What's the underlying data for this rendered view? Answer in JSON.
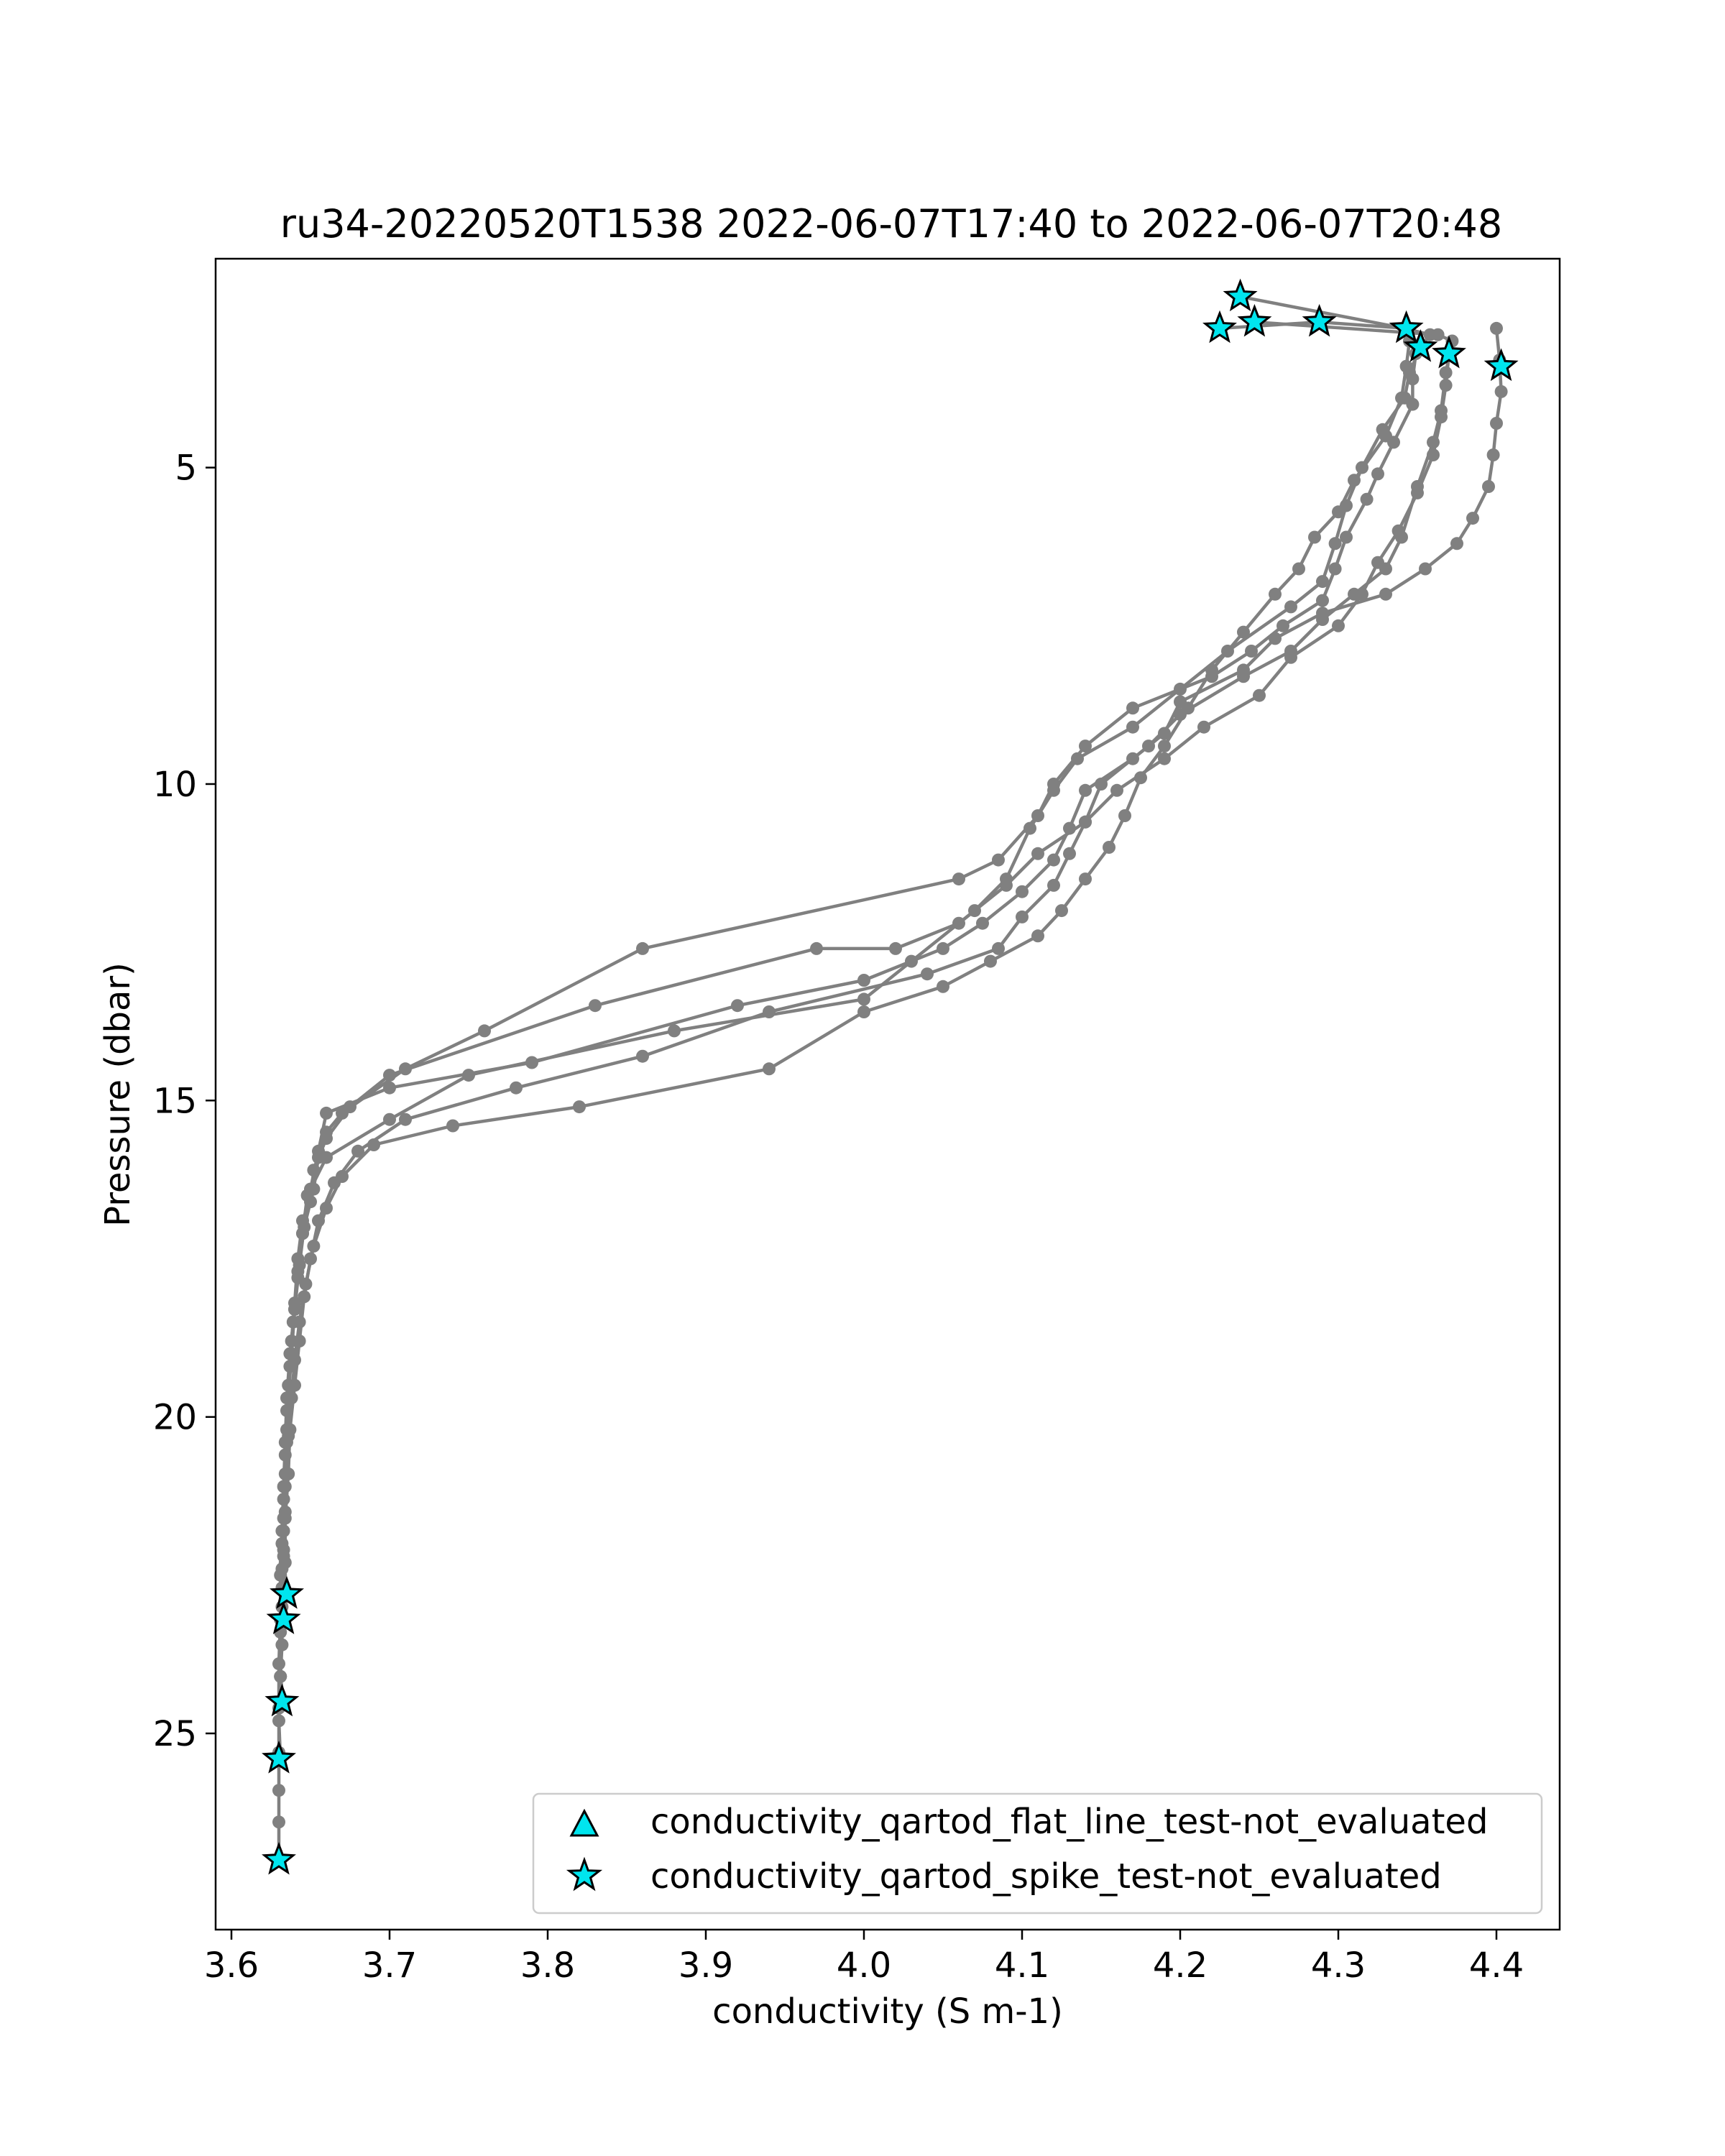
{
  "chart_data": {
    "type": "scatter",
    "title": "ru34-20220520T1538 2022-06-07T17:40 to 2022-06-07T20:48",
    "xlabel": "conductivity (S m-1)",
    "ylabel": "Pressure (dbar)",
    "xlim": [
      3.59,
      4.44
    ],
    "ylim": [
      28.1,
      1.7
    ],
    "y_inverted": true,
    "xticks": [
      "3.6",
      "3.7",
      "3.8",
      "3.9",
      "4.0",
      "4.1",
      "4.2",
      "4.3",
      "4.4"
    ],
    "xtick_values": [
      3.6,
      3.7,
      3.8,
      3.9,
      4.0,
      4.1,
      4.2,
      4.3,
      4.4
    ],
    "yticks": [
      "5",
      "10",
      "15",
      "20",
      "25"
    ],
    "ytick_values": [
      5,
      10,
      15,
      20,
      25
    ],
    "grid": false,
    "legend_position": "bottom-right",
    "colors": {
      "profile_line": "#808080",
      "marker_fill": "#00e5ee",
      "marker_edge": "#000000"
    },
    "legend": [
      {
        "label": "conductivity_qartod_flat_line_test-not_evaluated",
        "marker": "triangle"
      },
      {
        "label": "conductivity_qartod_spike_test-not_evaluated",
        "marker": "star"
      }
    ],
    "profiles": [
      {
        "points": [
          [
            4.238,
            2.3
          ],
          [
            4.342,
            2.8
          ],
          [
            4.358,
            2.9
          ],
          [
            4.349,
            3.2
          ],
          [
            4.347,
            3.6
          ],
          [
            4.347,
            4.0
          ],
          [
            4.335,
            4.6
          ],
          [
            4.325,
            5.1
          ],
          [
            4.318,
            5.5
          ],
          [
            4.305,
            6.1
          ],
          [
            4.298,
            6.6
          ],
          [
            4.29,
            7.1
          ],
          [
            4.265,
            7.5
          ],
          [
            4.245,
            7.9
          ],
          [
            4.22,
            8.3
          ],
          [
            4.17,
            8.8
          ],
          [
            4.14,
            9.4
          ],
          [
            4.12,
            10.0
          ],
          [
            4.11,
            10.5
          ],
          [
            4.085,
            11.2
          ],
          [
            4.06,
            11.5
          ],
          [
            3.86,
            12.6
          ],
          [
            3.76,
            13.9
          ],
          [
            3.71,
            14.5
          ],
          [
            3.67,
            15.2
          ],
          [
            3.66,
            15.5
          ],
          [
            3.655,
            15.9
          ],
          [
            3.652,
            16.4
          ],
          [
            3.645,
            16.9
          ],
          [
            3.642,
            17.5
          ],
          [
            3.64,
            18.2
          ],
          [
            3.638,
            18.8
          ],
          [
            3.636,
            19.5
          ],
          [
            3.635,
            20.2
          ],
          [
            3.634,
            20.9
          ],
          [
            3.633,
            21.6
          ],
          [
            3.633,
            22.2
          ],
          [
            3.635,
            22.8
          ],
          [
            3.633,
            23.2
          ]
        ]
      },
      {
        "points": [
          [
            4.247,
            2.7
          ],
          [
            4.363,
            2.9
          ],
          [
            4.372,
            3.0
          ],
          [
            4.368,
            3.5
          ],
          [
            4.365,
            4.1
          ],
          [
            4.36,
            4.6
          ],
          [
            4.35,
            5.3
          ],
          [
            4.34,
            6.1
          ],
          [
            4.33,
            6.6
          ],
          [
            4.31,
            7.0
          ],
          [
            4.29,
            7.4
          ],
          [
            4.27,
            7.9
          ],
          [
            4.24,
            8.3
          ],
          [
            4.2,
            8.9
          ],
          [
            4.18,
            9.4
          ],
          [
            4.15,
            10.0
          ],
          [
            4.14,
            10.6
          ],
          [
            4.11,
            11.1
          ],
          [
            4.09,
            11.6
          ],
          [
            4.06,
            12.2
          ],
          [
            4.02,
            12.6
          ],
          [
            3.97,
            12.6
          ],
          [
            3.83,
            13.5
          ],
          [
            3.7,
            14.6
          ],
          [
            3.675,
            15.1
          ],
          [
            3.66,
            15.6
          ],
          [
            3.652,
            16.1
          ],
          [
            3.65,
            16.6
          ],
          [
            3.645,
            17.1
          ],
          [
            3.642,
            17.7
          ],
          [
            3.64,
            18.3
          ],
          [
            3.638,
            19.0
          ],
          [
            3.636,
            19.7
          ],
          [
            3.635,
            20.4
          ],
          [
            3.634,
            21.1
          ],
          [
            3.633,
            21.8
          ],
          [
            3.632,
            22.4
          ],
          [
            3.632,
            23.0
          ],
          [
            3.632,
            23.6
          ],
          [
            3.631,
            24.1
          ],
          [
            3.633,
            24.5
          ]
        ]
      },
      {
        "points": [
          [
            4.225,
            2.8
          ],
          [
            4.288,
            2.7
          ],
          [
            4.343,
            2.8
          ],
          [
            4.352,
            3.1
          ],
          [
            4.345,
            3.5
          ],
          [
            4.342,
            3.9
          ],
          [
            4.328,
            4.4
          ],
          [
            4.315,
            5.0
          ],
          [
            4.305,
            5.6
          ],
          [
            4.298,
            6.2
          ],
          [
            4.29,
            6.8
          ],
          [
            4.27,
            7.2
          ],
          [
            4.23,
            7.9
          ],
          [
            4.2,
            8.5
          ],
          [
            4.17,
            9.1
          ],
          [
            4.135,
            9.6
          ],
          [
            4.12,
            10.1
          ],
          [
            4.105,
            10.7
          ],
          [
            4.09,
            11.5
          ],
          [
            4.07,
            12.0
          ],
          [
            4.03,
            12.8
          ],
          [
            4.0,
            13.4
          ],
          [
            3.88,
            13.9
          ],
          [
            3.75,
            14.6
          ],
          [
            3.7,
            15.3
          ],
          [
            3.66,
            15.9
          ],
          [
            3.648,
            16.5
          ],
          [
            3.645,
            17.1
          ],
          [
            3.642,
            17.8
          ],
          [
            3.639,
            18.5
          ],
          [
            3.637,
            19.2
          ],
          [
            3.635,
            19.9
          ],
          [
            3.634,
            20.6
          ],
          [
            3.633,
            21.3
          ],
          [
            3.632,
            22.0
          ],
          [
            3.632,
            22.7
          ],
          [
            3.631,
            23.4
          ],
          [
            3.631,
            24.1
          ],
          [
            3.63,
            24.8
          ],
          [
            3.631,
            25.4
          ]
        ]
      },
      {
        "points": [
          [
            4.4,
            2.8
          ],
          [
            4.402,
            3.3
          ],
          [
            4.403,
            3.8
          ],
          [
            4.4,
            4.3
          ],
          [
            4.398,
            4.8
          ],
          [
            4.395,
            5.3
          ],
          [
            4.385,
            5.8
          ],
          [
            4.375,
            6.2
          ],
          [
            4.355,
            6.6
          ],
          [
            4.33,
            7.0
          ],
          [
            4.29,
            7.3
          ],
          [
            4.26,
            7.7
          ],
          [
            4.24,
            8.2
          ],
          [
            4.2,
            8.7
          ],
          [
            4.19,
            9.2
          ],
          [
            4.17,
            9.6
          ],
          [
            4.14,
            10.1
          ],
          [
            4.13,
            10.7
          ],
          [
            4.12,
            11.2
          ],
          [
            4.1,
            11.7
          ],
          [
            4.075,
            12.2
          ],
          [
            4.05,
            12.6
          ],
          [
            4.0,
            13.1
          ],
          [
            3.92,
            13.5
          ],
          [
            3.79,
            14.4
          ],
          [
            3.7,
            14.8
          ],
          [
            3.66,
            15.2
          ],
          [
            3.655,
            15.8
          ],
          [
            3.65,
            16.4
          ],
          [
            3.646,
            17.0
          ],
          [
            3.643,
            17.6
          ],
          [
            3.64,
            18.3
          ],
          [
            3.637,
            19.0
          ],
          [
            3.635,
            19.7
          ],
          [
            3.634,
            20.4
          ],
          [
            3.633,
            21.1
          ],
          [
            3.632,
            21.8
          ],
          [
            3.631,
            22.5
          ],
          [
            3.631,
            23.2
          ],
          [
            3.63,
            23.9
          ],
          [
            3.63,
            24.6
          ],
          [
            3.63,
            25.3
          ],
          [
            3.63,
            25.9
          ],
          [
            3.63,
            26.4
          ],
          [
            3.63,
            27.0
          ]
        ]
      },
      {
        "points": [
          [
            4.37,
            3.2
          ],
          [
            4.368,
            3.7
          ],
          [
            4.365,
            4.2
          ],
          [
            4.36,
            4.8
          ],
          [
            4.35,
            5.4
          ],
          [
            4.338,
            6.0
          ],
          [
            4.325,
            6.5
          ],
          [
            4.315,
            7.0
          ],
          [
            4.3,
            7.5
          ],
          [
            4.27,
            8.0
          ],
          [
            4.25,
            8.6
          ],
          [
            4.215,
            9.1
          ],
          [
            4.19,
            9.6
          ],
          [
            4.16,
            10.1
          ],
          [
            4.14,
            10.6
          ],
          [
            4.13,
            11.1
          ],
          [
            4.12,
            11.6
          ],
          [
            4.1,
            12.1
          ],
          [
            4.085,
            12.6
          ],
          [
            4.04,
            13.0
          ],
          [
            3.94,
            13.6
          ],
          [
            3.86,
            14.3
          ],
          [
            3.78,
            14.8
          ],
          [
            3.71,
            15.3
          ],
          [
            3.68,
            15.8
          ],
          [
            3.665,
            16.3
          ],
          [
            3.655,
            16.9
          ],
          [
            3.65,
            17.5
          ],
          [
            3.646,
            18.1
          ],
          [
            3.643,
            18.8
          ],
          [
            3.64,
            19.5
          ],
          [
            3.637,
            20.2
          ],
          [
            3.636,
            20.9
          ],
          [
            3.634,
            21.6
          ],
          [
            3.634,
            22.3
          ],
          [
            3.634,
            22.8
          ]
        ]
      },
      {
        "points": [
          [
            4.345,
            3.0
          ],
          [
            4.343,
            3.4
          ],
          [
            4.34,
            3.9
          ],
          [
            4.33,
            4.5
          ],
          [
            4.31,
            5.2
          ],
          [
            4.3,
            5.7
          ],
          [
            4.285,
            6.1
          ],
          [
            4.275,
            6.6
          ],
          [
            4.26,
            7.0
          ],
          [
            4.24,
            7.6
          ],
          [
            4.22,
            8.2
          ],
          [
            4.205,
            8.8
          ],
          [
            4.19,
            9.4
          ],
          [
            4.175,
            9.9
          ],
          [
            4.165,
            10.5
          ],
          [
            4.155,
            11.0
          ],
          [
            4.14,
            11.5
          ],
          [
            4.125,
            12.0
          ],
          [
            4.11,
            12.4
          ],
          [
            4.08,
            12.8
          ],
          [
            4.05,
            13.2
          ],
          [
            4.0,
            13.6
          ],
          [
            3.94,
            14.5
          ],
          [
            3.82,
            15.1
          ],
          [
            3.74,
            15.4
          ],
          [
            3.69,
            15.7
          ],
          [
            3.67,
            16.2
          ],
          [
            3.66,
            16.7
          ],
          [
            3.652,
            17.3
          ],
          [
            3.647,
            17.9
          ],
          [
            3.643,
            18.5
          ],
          [
            3.64,
            19.1
          ],
          [
            3.638,
            19.7
          ],
          [
            3.636,
            20.3
          ],
          [
            3.635,
            20.9
          ],
          [
            3.634,
            21.5
          ],
          [
            3.633,
            22.1
          ]
        ]
      }
    ],
    "spike_test_not_evaluated_points": [
      [
        4.238,
        2.3
      ],
      [
        4.247,
        2.7
      ],
      [
        4.225,
        2.8
      ],
      [
        4.288,
        2.7
      ],
      [
        4.343,
        2.8
      ],
      [
        4.352,
        3.1
      ],
      [
        4.37,
        3.2
      ],
      [
        4.403,
        3.4
      ],
      [
        3.635,
        22.8
      ],
      [
        3.633,
        23.2
      ],
      [
        3.632,
        24.5
      ],
      [
        3.63,
        25.4
      ],
      [
        3.63,
        27.0
      ]
    ],
    "flat_line_test_not_evaluated_points": []
  }
}
